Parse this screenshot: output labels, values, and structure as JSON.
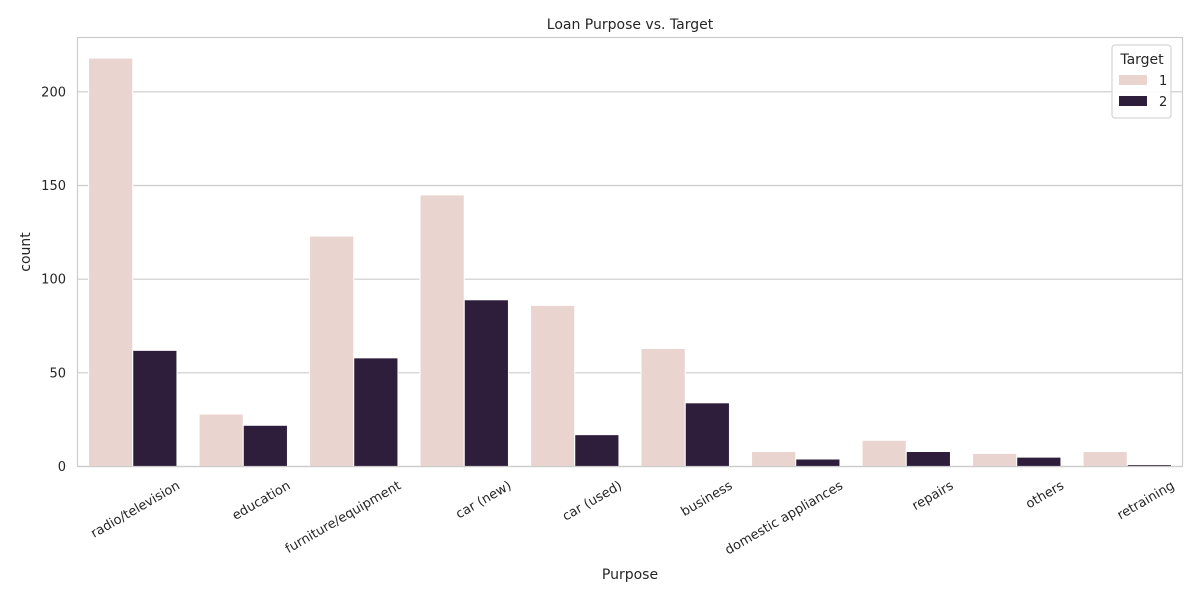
{
  "chart_data": {
    "type": "bar",
    "title": "Loan Purpose vs. Target",
    "xlabel": "Purpose",
    "ylabel": "count",
    "categories": [
      "radio/television",
      "education",
      "furniture/equipment",
      "car (new)",
      "car (used)",
      "business",
      "domestic appliances",
      "repairs",
      "others",
      "retraining"
    ],
    "series": [
      {
        "name": "1",
        "values": [
          218,
          28,
          123,
          145,
          86,
          63,
          8,
          14,
          7,
          8
        ],
        "color": "#ead4d0"
      },
      {
        "name": "2",
        "values": [
          62,
          22,
          58,
          89,
          17,
          34,
          4,
          8,
          5,
          1
        ],
        "color": "#2e1e3b"
      }
    ],
    "ylim": [
      0,
      229
    ],
    "yticks": [
      0,
      50,
      100,
      150,
      200
    ],
    "grid": true,
    "legend": {
      "title": "Target",
      "placement": "top-right"
    },
    "colors": {
      "grid": "#cccccc",
      "frame": "#cccccc",
      "text": "#262626"
    }
  }
}
